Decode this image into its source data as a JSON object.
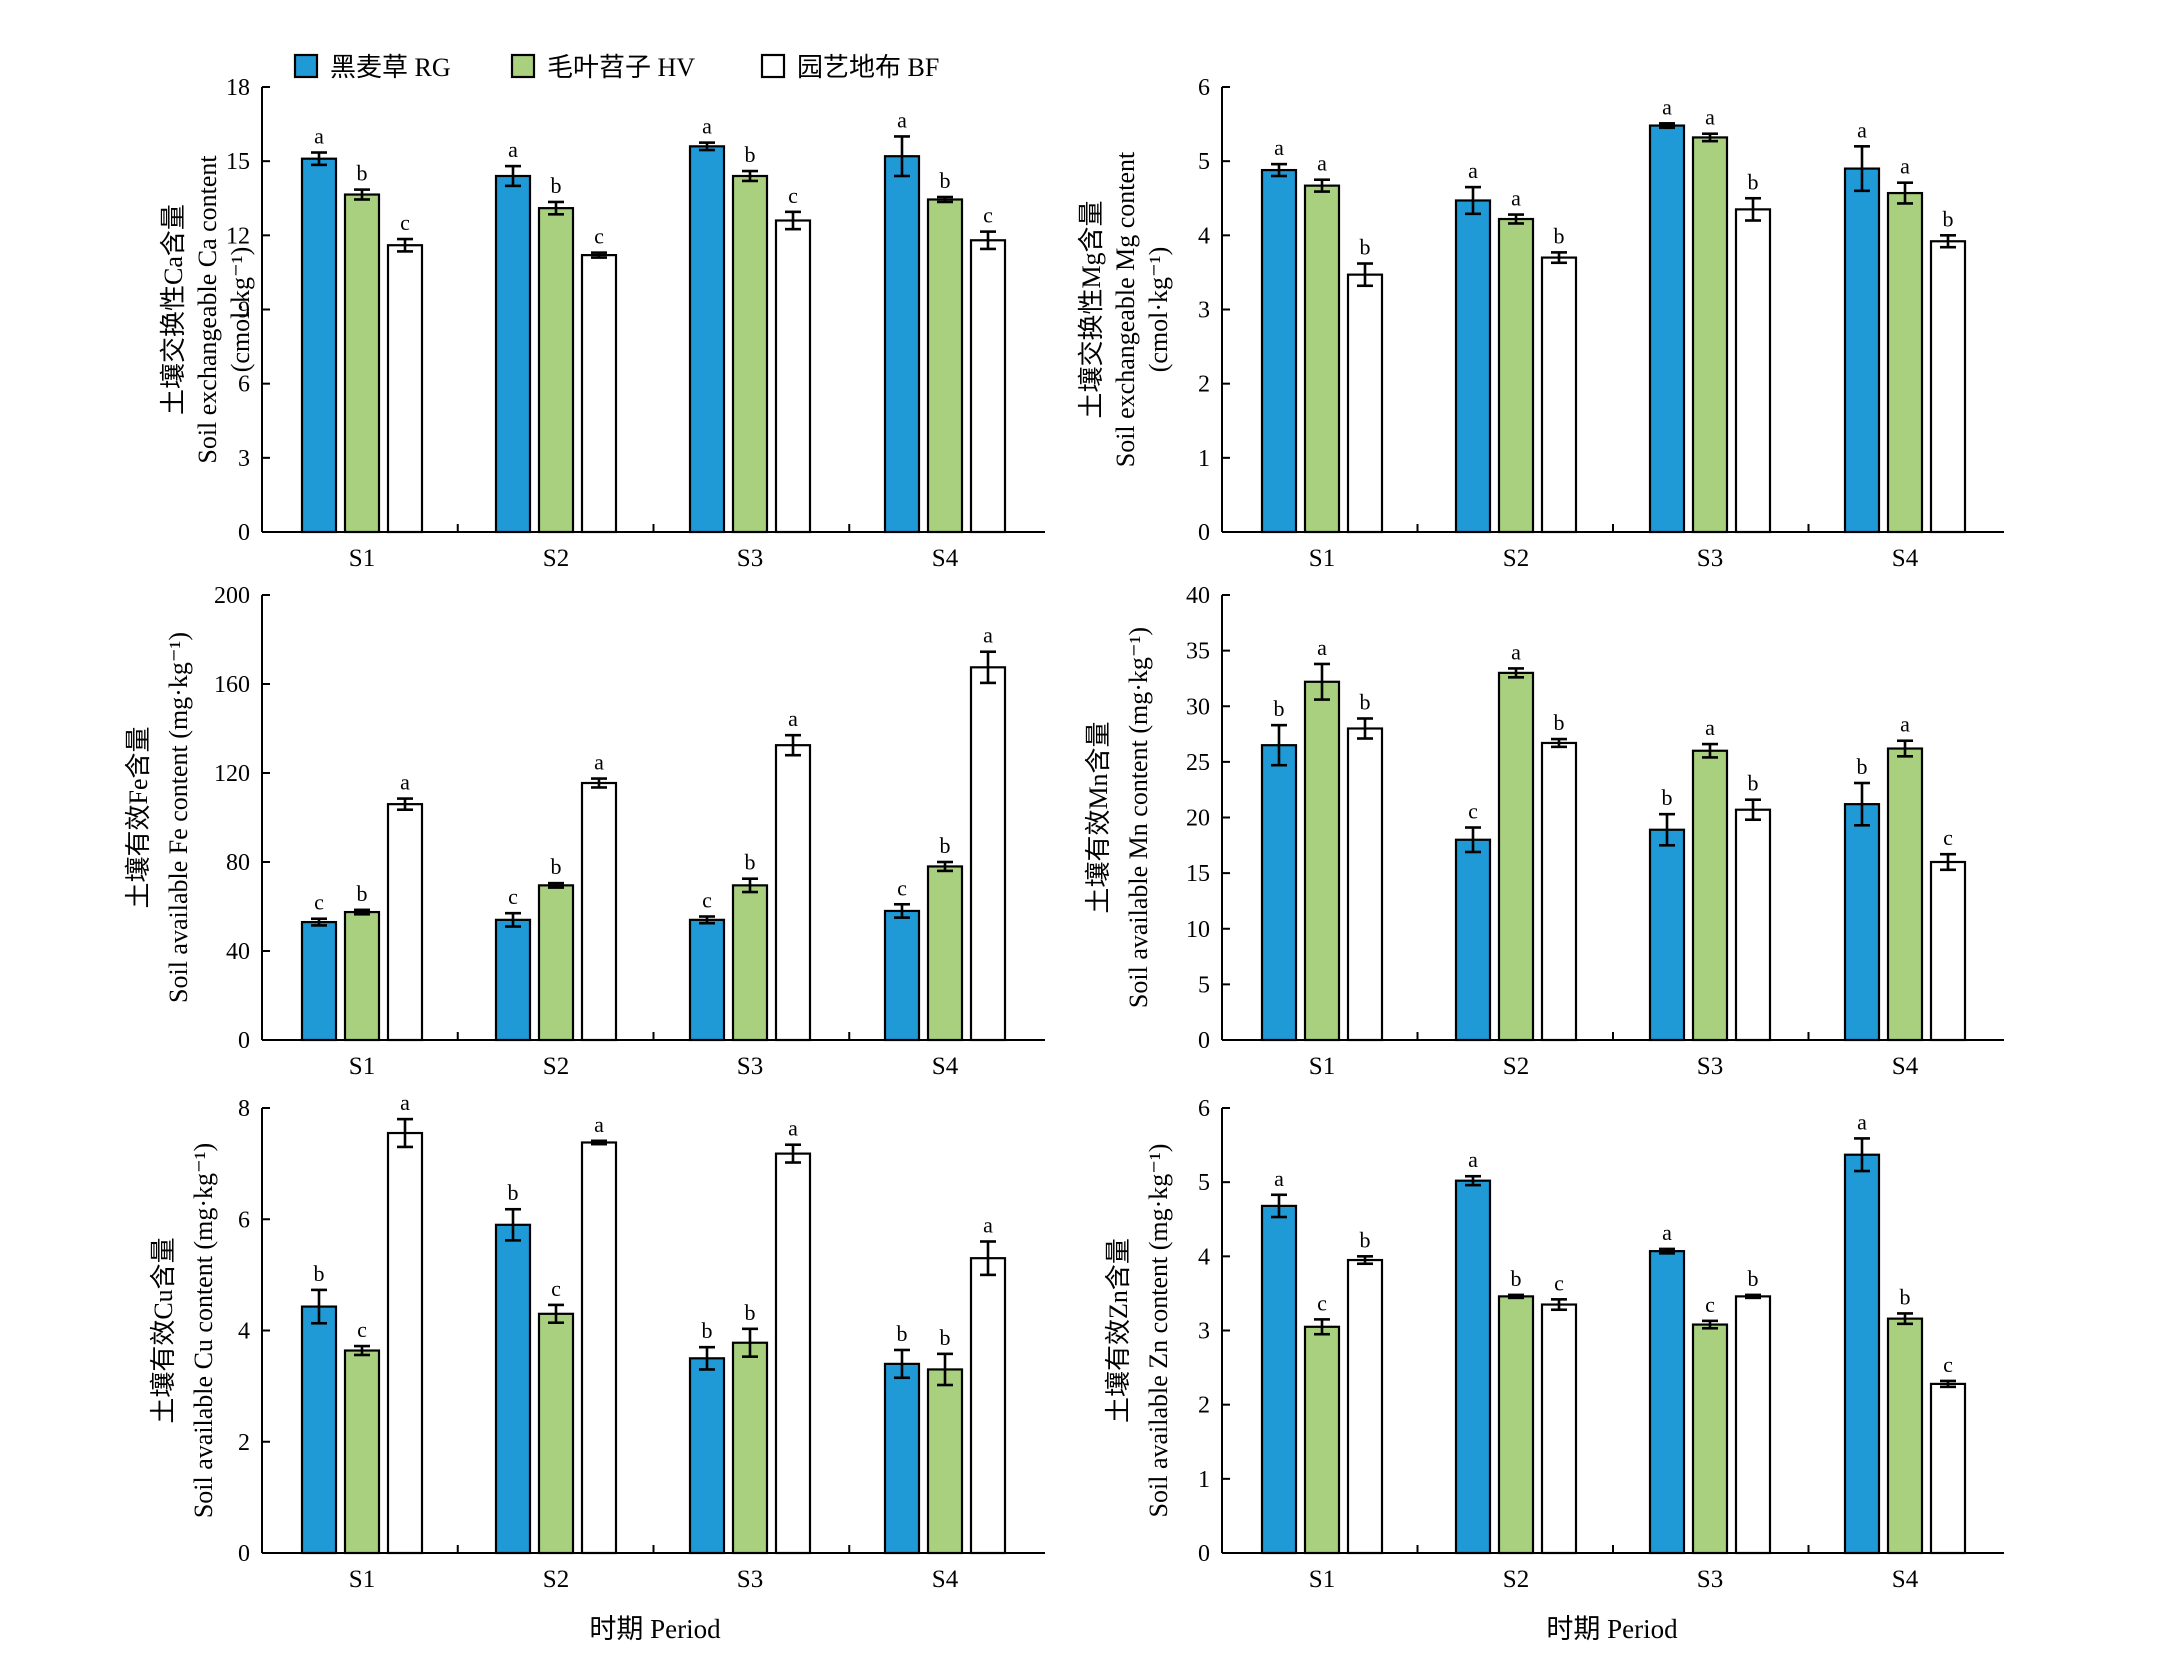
{
  "legend": [
    {
      "label": "黑麦草 RG",
      "color": "#1f9ad6"
    },
    {
      "label": "毛叶苕子 HV",
      "color": "#a9d07f"
    },
    {
      "label": "园艺地布 BF",
      "color": "#ffffff"
    }
  ],
  "xlabel": "时期 Period",
  "chart_data": [
    {
      "type": "bar",
      "categories": [
        "S1",
        "S2",
        "S3",
        "S4"
      ],
      "ylabel_lines": [
        "土壤交换性Ca含量",
        "Soil exchangeable Ca content",
        "(cmol·kg⁻¹)"
      ],
      "ylim": [
        0,
        18
      ],
      "yticks": [
        0,
        3,
        6,
        9,
        12,
        15,
        18
      ],
      "series": [
        {
          "name": "黑麦草 RG",
          "values": [
            15.1,
            14.4,
            15.6,
            15.2
          ],
          "errors": [
            0.25,
            0.4,
            0.15,
            0.8
          ],
          "letters": [
            "a",
            "a",
            "a",
            "a"
          ]
        },
        {
          "name": "毛叶苕子 HV",
          "values": [
            13.65,
            13.1,
            14.4,
            13.45
          ],
          "errors": [
            0.2,
            0.25,
            0.2,
            0.1
          ],
          "letters": [
            "b",
            "b",
            "b",
            "b"
          ]
        },
        {
          "name": "园艺地布 BF",
          "values": [
            11.6,
            11.2,
            12.6,
            11.8
          ],
          "errors": [
            0.25,
            0.1,
            0.35,
            0.35
          ],
          "letters": [
            "c",
            "c",
            "c",
            "c"
          ]
        }
      ]
    },
    {
      "type": "bar",
      "categories": [
        "S1",
        "S2",
        "S3",
        "S4"
      ],
      "ylabel_lines": [
        "土壤交换性Mg含量",
        "Soil exchangeable Mg content",
        "(cmol·kg⁻¹)"
      ],
      "ylim": [
        0,
        6
      ],
      "yticks": [
        0,
        1,
        2,
        3,
        4,
        5,
        6
      ],
      "series": [
        {
          "name": "黑麦草 RG",
          "values": [
            4.88,
            4.47,
            5.48,
            4.9
          ],
          "errors": [
            0.08,
            0.18,
            0.03,
            0.3
          ],
          "letters": [
            "a",
            "a",
            "a",
            "a"
          ]
        },
        {
          "name": "毛叶苕子 HV",
          "values": [
            4.67,
            4.22,
            5.32,
            4.57
          ],
          "errors": [
            0.08,
            0.06,
            0.05,
            0.14
          ],
          "letters": [
            "a",
            "a",
            "a",
            "a"
          ]
        },
        {
          "name": "园艺地布 BF",
          "values": [
            3.47,
            3.7,
            4.35,
            3.92
          ],
          "errors": [
            0.15,
            0.07,
            0.15,
            0.08
          ],
          "letters": [
            "b",
            "b",
            "b",
            "b"
          ]
        }
      ]
    },
    {
      "type": "bar",
      "categories": [
        "S1",
        "S2",
        "S3",
        "S4"
      ],
      "ylabel_lines": [
        "土壤有效Fe含量",
        "Soil available Fe content (mg·kg⁻¹)"
      ],
      "ylim": [
        0,
        200
      ],
      "yticks": [
        0,
        40,
        80,
        120,
        160,
        200
      ],
      "series": [
        {
          "name": "黑麦草 RG",
          "values": [
            53,
            54,
            54,
            58
          ],
          "errors": [
            1.5,
            3,
            1.5,
            3
          ],
          "letters": [
            "c",
            "c",
            "c",
            "c"
          ]
        },
        {
          "name": "毛叶苕子 HV",
          "values": [
            57.5,
            69.5,
            69.5,
            78
          ],
          "errors": [
            1,
            1,
            3,
            2
          ],
          "letters": [
            "b",
            "b",
            "b",
            "b"
          ]
        },
        {
          "name": "园艺地布 BF",
          "values": [
            106,
            115.5,
            132.5,
            167.5
          ],
          "errors": [
            2.5,
            2,
            4.5,
            7
          ],
          "letters": [
            "a",
            "a",
            "a",
            "a"
          ]
        }
      ]
    },
    {
      "type": "bar",
      "categories": [
        "S1",
        "S2",
        "S3",
        "S4"
      ],
      "ylabel_lines": [
        "土壤有效Mn含量",
        "Soil available Mn content (mg·kg⁻¹)"
      ],
      "ylim": [
        0,
        40
      ],
      "yticks": [
        0,
        5,
        10,
        15,
        20,
        25,
        30,
        35,
        40
      ],
      "series": [
        {
          "name": "黑麦草 RG",
          "values": [
            26.5,
            18,
            18.9,
            21.2
          ],
          "errors": [
            1.8,
            1.1,
            1.4,
            1.9
          ],
          "letters": [
            "b",
            "c",
            "b",
            "b"
          ]
        },
        {
          "name": "毛叶苕子 HV",
          "values": [
            32.2,
            33,
            26,
            26.2
          ],
          "errors": [
            1.6,
            0.4,
            0.6,
            0.7
          ],
          "letters": [
            "a",
            "a",
            "a",
            "a"
          ]
        },
        {
          "name": "园艺地布 BF",
          "values": [
            28,
            26.7,
            20.7,
            16
          ],
          "errors": [
            0.9,
            0.35,
            0.9,
            0.7
          ],
          "letters": [
            "b",
            "b",
            "b",
            "c"
          ]
        }
      ]
    },
    {
      "type": "bar",
      "categories": [
        "S1",
        "S2",
        "S3",
        "S4"
      ],
      "ylabel_lines": [
        "土壤有效Cu含量",
        "Soil available Cu content (mg·kg⁻¹)"
      ],
      "ylim": [
        0,
        8
      ],
      "yticks": [
        0,
        2,
        4,
        6,
        8
      ],
      "series": [
        {
          "name": "黑麦草 RG",
          "values": [
            4.43,
            5.9,
            3.5,
            3.4
          ],
          "errors": [
            0.3,
            0.28,
            0.2,
            0.25
          ],
          "letters": [
            "b",
            "b",
            "b",
            "b"
          ]
        },
        {
          "name": "毛叶苕子 HV",
          "values": [
            3.64,
            4.3,
            3.78,
            3.3
          ],
          "errors": [
            0.08,
            0.16,
            0.25,
            0.28
          ],
          "letters": [
            "c",
            "c",
            "b",
            "b"
          ]
        },
        {
          "name": "园艺地布 BF",
          "values": [
            7.55,
            7.38,
            7.18,
            5.3
          ],
          "errors": [
            0.25,
            0.03,
            0.16,
            0.3
          ],
          "letters": [
            "a",
            "a",
            "a",
            "a"
          ]
        }
      ]
    },
    {
      "type": "bar",
      "categories": [
        "S1",
        "S2",
        "S3",
        "S4"
      ],
      "ylabel_lines": [
        "土壤有效Zn含量",
        "Soil available Zn content (mg·kg⁻¹)"
      ],
      "ylim": [
        0,
        6
      ],
      "yticks": [
        0,
        1,
        2,
        3,
        4,
        5,
        6
      ],
      "series": [
        {
          "name": "黑麦草 RG",
          "values": [
            4.68,
            5.02,
            4.07,
            5.37
          ],
          "errors": [
            0.15,
            0.06,
            0.03,
            0.22
          ],
          "letters": [
            "a",
            "a",
            "a",
            "a"
          ]
        },
        {
          "name": "毛叶苕子 HV",
          "values": [
            3.05,
            3.46,
            3.08,
            3.16
          ],
          "errors": [
            0.1,
            0.02,
            0.05,
            0.07
          ],
          "letters": [
            "c",
            "b",
            "c",
            "b"
          ]
        },
        {
          "name": "园艺地布 BF",
          "values": [
            3.95,
            3.35,
            3.46,
            2.28
          ],
          "errors": [
            0.05,
            0.07,
            0.02,
            0.04
          ],
          "letters": [
            "b",
            "c",
            "b",
            "c"
          ]
        }
      ]
    }
  ]
}
